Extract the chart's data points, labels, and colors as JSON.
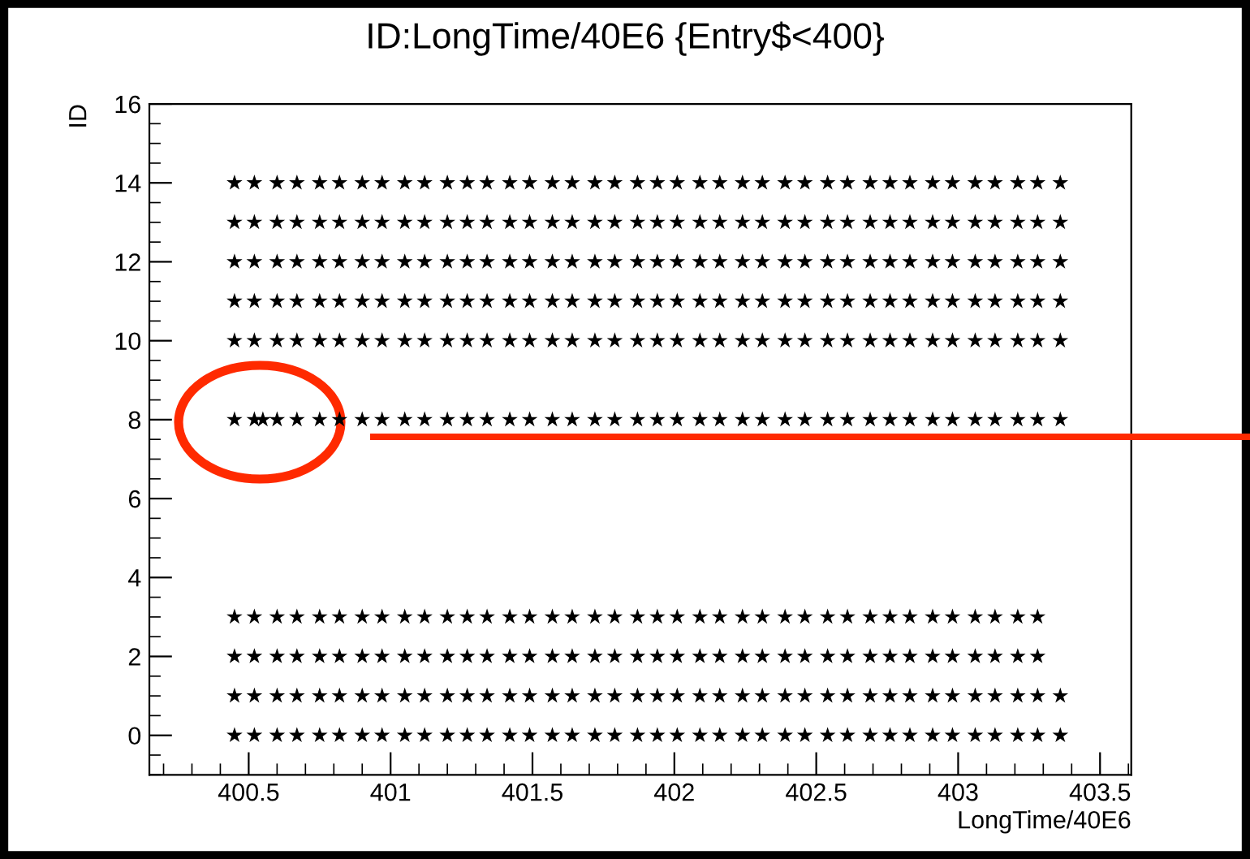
{
  "chart_data": {
    "type": "scatter",
    "title": "ID:LongTime/40E6 {Entry$<400}",
    "xlabel": "LongTime/40E6",
    "ylabel": "ID",
    "xlim": [
      400.15,
      403.61
    ],
    "ylim": [
      -1,
      16
    ],
    "xticks": [
      400.5,
      401,
      401.5,
      402,
      402.5,
      403,
      403.5
    ],
    "yticks": [
      0,
      2,
      4,
      6,
      8,
      10,
      12,
      14,
      16
    ],
    "marker": "star",
    "grid": false,
    "legend": false,
    "series": [
      {
        "color": "#000000",
        "x": [
          400.45,
          400.52,
          400.6,
          400.67,
          400.75,
          400.82,
          400.9,
          400.97,
          401.05,
          401.12,
          401.2,
          401.27,
          401.34,
          401.42,
          401.49,
          401.57,
          401.64,
          401.72,
          401.79,
          401.87,
          401.94,
          402.01,
          402.09,
          402.16,
          402.24,
          402.31,
          402.39,
          402.46,
          402.54,
          402.61,
          402.69,
          402.76,
          402.83,
          402.91,
          402.98,
          403.06,
          403.13,
          403.21,
          403.28,
          403.36
        ],
        "values": [
          0,
          0,
          0,
          0,
          0,
          0,
          0,
          0,
          0,
          0,
          0,
          0,
          0,
          0,
          0,
          0,
          0,
          0,
          0,
          0,
          0,
          0,
          0,
          0,
          0,
          0,
          0,
          0,
          0,
          0,
          0,
          0,
          0,
          0,
          0,
          0,
          0,
          0,
          0,
          0
        ]
      },
      {
        "color": "#000000",
        "x": [
          400.45,
          400.52,
          400.6,
          400.67,
          400.75,
          400.82,
          400.9,
          400.97,
          401.05,
          401.12,
          401.2,
          401.27,
          401.34,
          401.42,
          401.49,
          401.57,
          401.64,
          401.72,
          401.79,
          401.87,
          401.94,
          402.01,
          402.09,
          402.16,
          402.24,
          402.31,
          402.39,
          402.46,
          402.54,
          402.61,
          402.69,
          402.76,
          402.83,
          402.91,
          402.98,
          403.06,
          403.13,
          403.21,
          403.28,
          403.36
        ],
        "values": [
          1,
          1,
          1,
          1,
          1,
          1,
          1,
          1,
          1,
          1,
          1,
          1,
          1,
          1,
          1,
          1,
          1,
          1,
          1,
          1,
          1,
          1,
          1,
          1,
          1,
          1,
          1,
          1,
          1,
          1,
          1,
          1,
          1,
          1,
          1,
          1,
          1,
          1,
          1,
          1
        ]
      },
      {
        "color": "#000000",
        "x": [
          400.45,
          400.52,
          400.6,
          400.67,
          400.75,
          400.82,
          400.9,
          400.97,
          401.05,
          401.12,
          401.2,
          401.27,
          401.34,
          401.42,
          401.49,
          401.57,
          401.64,
          401.72,
          401.79,
          401.87,
          401.94,
          402.01,
          402.09,
          402.16,
          402.24,
          402.31,
          402.39,
          402.46,
          402.54,
          402.61,
          402.69,
          402.76,
          402.83,
          402.91,
          402.98,
          403.06,
          403.13,
          403.21,
          403.28
        ],
        "values": [
          2,
          2,
          2,
          2,
          2,
          2,
          2,
          2,
          2,
          2,
          2,
          2,
          2,
          2,
          2,
          2,
          2,
          2,
          2,
          2,
          2,
          2,
          2,
          2,
          2,
          2,
          2,
          2,
          2,
          2,
          2,
          2,
          2,
          2,
          2,
          2,
          2,
          2,
          2
        ]
      },
      {
        "color": "#000000",
        "x": [
          400.45,
          400.52,
          400.6,
          400.67,
          400.75,
          400.82,
          400.9,
          400.97,
          401.05,
          401.12,
          401.2,
          401.27,
          401.34,
          401.42,
          401.49,
          401.57,
          401.64,
          401.72,
          401.79,
          401.87,
          401.94,
          402.01,
          402.09,
          402.16,
          402.24,
          402.31,
          402.39,
          402.46,
          402.54,
          402.61,
          402.69,
          402.76,
          402.83,
          402.91,
          402.98,
          403.06,
          403.13,
          403.21,
          403.28
        ],
        "values": [
          3,
          3,
          3,
          3,
          3,
          3,
          3,
          3,
          3,
          3,
          3,
          3,
          3,
          3,
          3,
          3,
          3,
          3,
          3,
          3,
          3,
          3,
          3,
          3,
          3,
          3,
          3,
          3,
          3,
          3,
          3,
          3,
          3,
          3,
          3,
          3,
          3,
          3,
          3
        ]
      },
      {
        "color": "#000000",
        "x": [
          400.45,
          400.52,
          400.55,
          400.6,
          400.67,
          400.75,
          400.82,
          400.9,
          400.97,
          401.05,
          401.12,
          401.2,
          401.27,
          401.34,
          401.42,
          401.49,
          401.57,
          401.64,
          401.72,
          401.79,
          401.87,
          401.94,
          402.01,
          402.09,
          402.16,
          402.24,
          402.31,
          402.39,
          402.46,
          402.54,
          402.61,
          402.69,
          402.76,
          402.83,
          402.91,
          402.98,
          403.06,
          403.13,
          403.21,
          403.28,
          403.36
        ],
        "values": [
          8,
          8,
          8,
          8,
          8,
          8,
          8,
          8,
          8,
          8,
          8,
          8,
          8,
          8,
          8,
          8,
          8,
          8,
          8,
          8,
          8,
          8,
          8,
          8,
          8,
          8,
          8,
          8,
          8,
          8,
          8,
          8,
          8,
          8,
          8,
          8,
          8,
          8,
          8,
          8,
          8
        ]
      },
      {
        "color": "#000000",
        "x": [
          400.45,
          400.52,
          400.6,
          400.67,
          400.75,
          400.82,
          400.9,
          400.97,
          401.05,
          401.12,
          401.2,
          401.27,
          401.34,
          401.42,
          401.49,
          401.57,
          401.64,
          401.72,
          401.79,
          401.87,
          401.94,
          402.01,
          402.09,
          402.16,
          402.24,
          402.31,
          402.39,
          402.46,
          402.54,
          402.61,
          402.69,
          402.76,
          402.83,
          402.91,
          402.98,
          403.06,
          403.13,
          403.21,
          403.28,
          403.36
        ],
        "values": [
          10,
          10,
          10,
          10,
          10,
          10,
          10,
          10,
          10,
          10,
          10,
          10,
          10,
          10,
          10,
          10,
          10,
          10,
          10,
          10,
          10,
          10,
          10,
          10,
          10,
          10,
          10,
          10,
          10,
          10,
          10,
          10,
          10,
          10,
          10,
          10,
          10,
          10,
          10,
          10
        ]
      },
      {
        "color": "#000000",
        "x": [
          400.45,
          400.52,
          400.6,
          400.67,
          400.75,
          400.82,
          400.9,
          400.97,
          401.05,
          401.12,
          401.2,
          401.27,
          401.34,
          401.42,
          401.49,
          401.57,
          401.64,
          401.72,
          401.79,
          401.87,
          401.94,
          402.01,
          402.09,
          402.16,
          402.24,
          402.31,
          402.39,
          402.46,
          402.54,
          402.61,
          402.69,
          402.76,
          402.83,
          402.91,
          402.98,
          403.06,
          403.13,
          403.21,
          403.28,
          403.36
        ],
        "values": [
          11,
          11,
          11,
          11,
          11,
          11,
          11,
          11,
          11,
          11,
          11,
          11,
          11,
          11,
          11,
          11,
          11,
          11,
          11,
          11,
          11,
          11,
          11,
          11,
          11,
          11,
          11,
          11,
          11,
          11,
          11,
          11,
          11,
          11,
          11,
          11,
          11,
          11,
          11,
          11
        ]
      },
      {
        "color": "#000000",
        "x": [
          400.45,
          400.52,
          400.6,
          400.67,
          400.75,
          400.82,
          400.9,
          400.97,
          401.05,
          401.12,
          401.2,
          401.27,
          401.34,
          401.42,
          401.49,
          401.57,
          401.64,
          401.72,
          401.79,
          401.87,
          401.94,
          402.01,
          402.09,
          402.16,
          402.24,
          402.31,
          402.39,
          402.46,
          402.54,
          402.61,
          402.69,
          402.76,
          402.83,
          402.91,
          402.98,
          403.06,
          403.13,
          403.21,
          403.28,
          403.36
        ],
        "values": [
          12,
          12,
          12,
          12,
          12,
          12,
          12,
          12,
          12,
          12,
          12,
          12,
          12,
          12,
          12,
          12,
          12,
          12,
          12,
          12,
          12,
          12,
          12,
          12,
          12,
          12,
          12,
          12,
          12,
          12,
          12,
          12,
          12,
          12,
          12,
          12,
          12,
          12,
          12,
          12
        ]
      },
      {
        "color": "#000000",
        "x": [
          400.45,
          400.52,
          400.6,
          400.67,
          400.75,
          400.82,
          400.9,
          400.97,
          401.05,
          401.12,
          401.2,
          401.27,
          401.34,
          401.42,
          401.49,
          401.57,
          401.64,
          401.72,
          401.79,
          401.87,
          401.94,
          402.01,
          402.09,
          402.16,
          402.24,
          402.31,
          402.39,
          402.46,
          402.54,
          402.61,
          402.69,
          402.76,
          402.83,
          402.91,
          402.98,
          403.06,
          403.13,
          403.21,
          403.28,
          403.36
        ],
        "values": [
          13,
          13,
          13,
          13,
          13,
          13,
          13,
          13,
          13,
          13,
          13,
          13,
          13,
          13,
          13,
          13,
          13,
          13,
          13,
          13,
          13,
          13,
          13,
          13,
          13,
          13,
          13,
          13,
          13,
          13,
          13,
          13,
          13,
          13,
          13,
          13,
          13,
          13,
          13,
          13
        ]
      },
      {
        "color": "#000000",
        "x": [
          400.45,
          400.52,
          400.6,
          400.67,
          400.75,
          400.82,
          400.9,
          400.97,
          401.05,
          401.12,
          401.2,
          401.27,
          401.34,
          401.42,
          401.49,
          401.57,
          401.64,
          401.72,
          401.79,
          401.87,
          401.94,
          402.01,
          402.09,
          402.16,
          402.24,
          402.31,
          402.39,
          402.46,
          402.54,
          402.61,
          402.69,
          402.76,
          402.83,
          402.91,
          402.98,
          403.06,
          403.13,
          403.21,
          403.28,
          403.36
        ],
        "values": [
          14,
          14,
          14,
          14,
          14,
          14,
          14,
          14,
          14,
          14,
          14,
          14,
          14,
          14,
          14,
          14,
          14,
          14,
          14,
          14,
          14,
          14,
          14,
          14,
          14,
          14,
          14,
          14,
          14,
          14,
          14,
          14,
          14,
          14,
          14,
          14,
          14,
          14,
          14,
          14
        ]
      }
    ]
  }
}
